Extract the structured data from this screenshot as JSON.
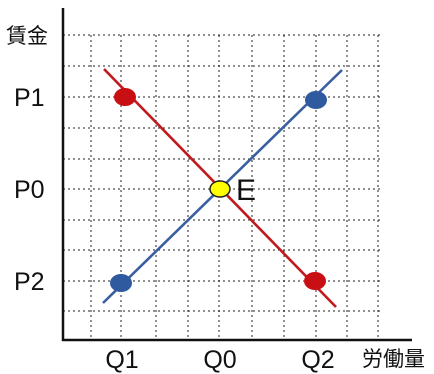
{
  "labels": {
    "y_axis": "賃金",
    "x_axis": "労働量",
    "equilibrium": "E"
  },
  "y_ticks": [
    "P1",
    "P0",
    "P2"
  ],
  "x_ticks": [
    "Q1",
    "Q0",
    "Q2"
  ],
  "colors": {
    "demand_line": "#c0191e",
    "supply_line": "#3a5fa0",
    "demand_points": "#c80f14",
    "supply_points": "#2f5aa0",
    "equilibrium_fill": "#ffff00",
    "equilibrium_stroke": "#222222"
  },
  "demand_points": [
    "P1 at Q1",
    "P2 at Q2"
  ],
  "supply_points": [
    "P2 at Q1",
    "P1 at Q2"
  ],
  "equilibrium_point": "P0 at Q0"
}
